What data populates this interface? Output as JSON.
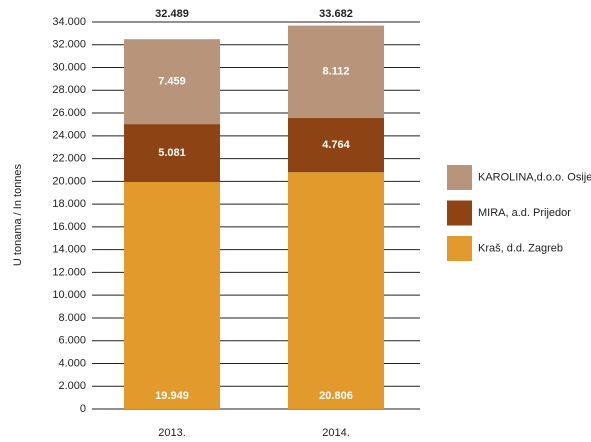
{
  "chart_data": {
    "type": "stacked_bar",
    "y_label": "U tonama / In tonnes",
    "categories": [
      "2013.",
      "2014."
    ],
    "series": [
      {
        "name": "Kraš, d.d. Zagreb",
        "color": "#e39a2c",
        "values": [
          19949,
          20806
        ],
        "value_labels": [
          "19.949",
          "20.806"
        ]
      },
      {
        "name": "MIRA, a.d. Prijedor",
        "color": "#8e4314",
        "values": [
          5081,
          4764
        ],
        "value_labels": [
          "5.081",
          "4.764"
        ]
      },
      {
        "name": "KAROLINA,d.o.o. Osijek",
        "color": "#b8957a",
        "values": [
          7459,
          8112
        ],
        "value_labels": [
          "7.459",
          "8.112"
        ]
      }
    ],
    "totals": [
      32489,
      33682
    ],
    "total_value_labels": [
      "32.489",
      "33.682"
    ],
    "ylim": [
      0,
      34000
    ],
    "yticks": [
      0,
      {
        "value": 2000,
        "label": "2.000"
      },
      {
        "value": 4000,
        "label": "4.000"
      },
      {
        "value": 6000,
        "label": "6.000"
      },
      {
        "value": 8000,
        "label": "8.000"
      },
      {
        "value": 10000,
        "label": "10.000"
      },
      {
        "value": 12000,
        "label": "12.000"
      },
      {
        "value": 14000,
        "label": "14.000"
      },
      {
        "value": 16000,
        "label": "16.000"
      },
      {
        "value": 18000,
        "label": "18.000"
      },
      {
        "value": 20000,
        "label": "20.000"
      },
      {
        "value": 22000,
        "label": "22.000"
      },
      {
        "value": 24000,
        "label": "24.000"
      },
      {
        "value": 26000,
        "label": "26.000"
      },
      {
        "value": 28000,
        "label": "28.000"
      },
      {
        "value": 30000,
        "label": "30.000"
      },
      {
        "value": 32000,
        "label": "32.000"
      },
      {
        "value": 34000,
        "label": "34.000"
      }
    ],
    "grid": true,
    "legend": "right"
  }
}
